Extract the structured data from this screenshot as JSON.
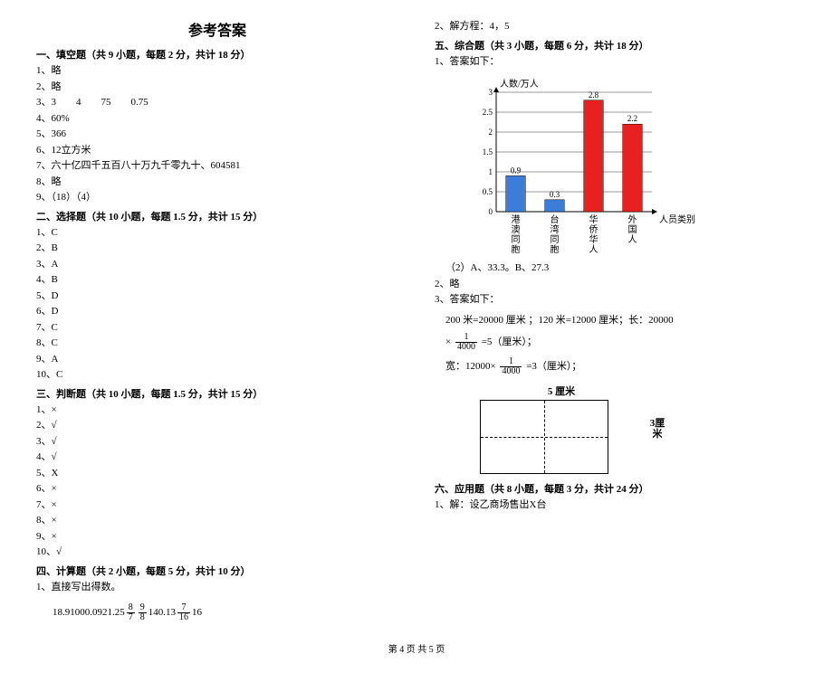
{
  "title": "参考答案",
  "footer": "第 4 页 共 5 页",
  "left": {
    "s1": {
      "head": "一、填空题（共 9 小题，每题 2 分，共计 18 分）",
      "items": [
        "1、略",
        "2、略",
        "3、3　　4　　75　　0.75",
        "4、60%",
        "5、366",
        "6、12立方米",
        "7、六十亿四千五百八十万九千零九十、604581",
        "8、略",
        "9、（18）（4）"
      ]
    },
    "s2": {
      "head": "二、选择题（共 10 小题，每题 1.5 分，共计 15 分）",
      "items": [
        "1、C",
        "2、B",
        "3、A",
        "4、B",
        "5、D",
        "6、D",
        "7、C",
        "8、C",
        "9、A",
        "10、C"
      ]
    },
    "s3": {
      "head": "三、判断题（共 10 小题，每题 1.5 分，共计 15 分）",
      "items": [
        "1、×",
        "2、√",
        "3、√",
        "4、√",
        "5、X",
        "6、×",
        "7、×",
        "8、×",
        "9、×",
        "10、√"
      ]
    },
    "s4": {
      "head": "四、计算题（共 2 小题，每题 5 分，共计 10 分）",
      "sub": "1、直接写出得数。",
      "nums": [
        "18.9",
        "100",
        "0.09",
        "21.25"
      ],
      "fracs": [
        {
          "n": "8",
          "d": "7"
        },
        {
          "n": "9",
          "d": "8"
        }
      ],
      "nums2": [
        "14",
        "0.13"
      ],
      "frac2": {
        "n": "7",
        "d": "16"
      },
      "nums3": [
        "16"
      ]
    }
  },
  "right": {
    "pre": "2、解方程：4，5",
    "s5head": "五、综合题（共 3 小题，每题 6 分，共计 18 分）",
    "s5_1": "1、答案如下：",
    "chart": {
      "ylabel": "人数/万人",
      "xlabel": "人员类别",
      "ymax": 3,
      "ystep": 0.5,
      "bars": [
        {
          "label": "港澳同胞",
          "value": 0.9,
          "color": "#3b7dd8"
        },
        {
          "label": "台湾同胞",
          "value": 0.3,
          "color": "#3b7dd8"
        },
        {
          "label": "华侨华人",
          "value": 2.8,
          "color": "#e8201f"
        },
        {
          "label": "外国人",
          "value": 2.2,
          "color": "#e8201f"
        }
      ],
      "grid_color": "#000",
      "bg": "#fff"
    },
    "s5_1b": "（2）A、33.3。B、27.3",
    "s5_2": "2、略",
    "s5_3": "3、答案如下：",
    "calc1": "200 米=20000 厘米 ；120 米=12000 厘米；长：20000",
    "calc2a": "×",
    "frac_a": {
      "n": "1",
      "d": "4000"
    },
    "calc2b": "=5（厘米）；",
    "calc3a": "宽：12000×",
    "calc3b": " =3（厘米）；",
    "rect": {
      "top": "5 厘米",
      "right": "3厘米"
    },
    "s6head": "六、应用题（共 8 小题，每题 3 分，共计 24 分）",
    "s6_1": "1、解：设乙商场售出X台"
  }
}
